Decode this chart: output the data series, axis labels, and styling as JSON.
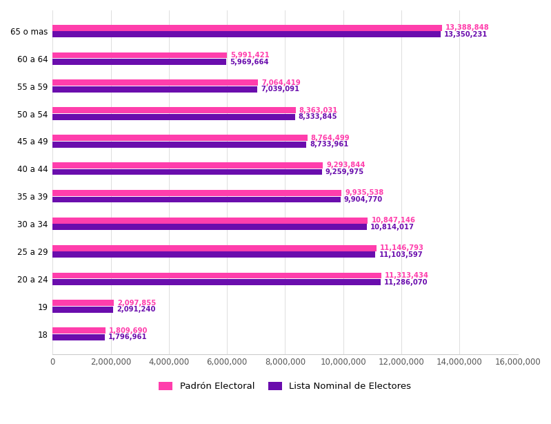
{
  "categories": [
    "18",
    "19",
    "20 a 24",
    "25 a 29",
    "30 a 34",
    "35 a 39",
    "40 a 44",
    "45 a 49",
    "50 a 54",
    "55 a 59",
    "60 a 64",
    "65 o mas"
  ],
  "padron": [
    1809690,
    2097855,
    11313434,
    11146793,
    10847146,
    9935538,
    9293844,
    8764499,
    8363031,
    7064419,
    5991421,
    13388848
  ],
  "lista": [
    1796961,
    2091240,
    11286070,
    11103597,
    10814017,
    9904770,
    9259975,
    8733961,
    8333845,
    7039091,
    5969664,
    13350231
  ],
  "padron_labels": [
    "1,809,690",
    "2,097,855",
    "11,313,434",
    "11,146,793",
    "10,847,146",
    "9,935,538",
    "9,293,844",
    "8,764,499",
    "8,363,031",
    "7,064,419",
    "5,991,421",
    "13,388,848"
  ],
  "lista_labels": [
    "1,796,961",
    "2,091,240",
    "11,286,070",
    "11,103,597",
    "10,814,017",
    "9,904,770",
    "9,259,975",
    "8,733,961",
    "8,333,845",
    "7,039,091",
    "5,969,664",
    "13,350,231"
  ],
  "padron_color": "#FF3EAC",
  "lista_color": "#6A0DAD",
  "background_color": "#FFFFFF",
  "xlim": [
    0,
    16000000
  ],
  "xlabel_ticks": [
    0,
    2000000,
    4000000,
    6000000,
    8000000,
    10000000,
    12000000,
    14000000,
    16000000
  ],
  "xlabel_labels": [
    "0",
    "2,000,000",
    "4,000,000",
    "6,000,000",
    "8,000,000",
    "10,000,000",
    "12,000,000",
    "14,000,000",
    "16,000,000"
  ],
  "legend_padron": "Padrón Electoral",
  "legend_lista": "Lista Nominal de Electores",
  "bar_height": 0.22,
  "bar_gap": 0.02,
  "label_fontsize": 7.2,
  "axis_fontsize": 8.5,
  "legend_fontsize": 9.5
}
